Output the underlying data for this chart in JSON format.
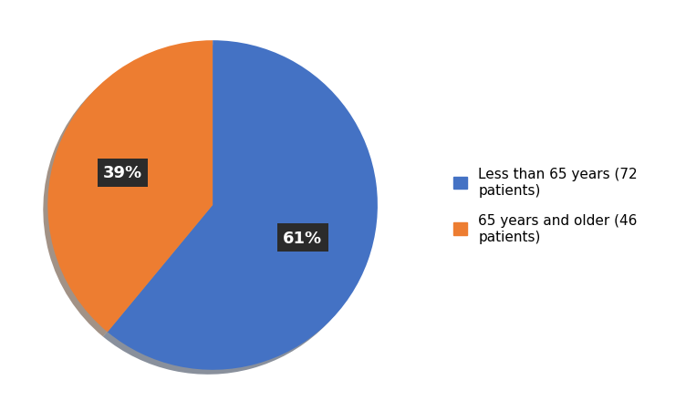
{
  "slices": [
    61,
    39
  ],
  "labels": [
    "Less than 65 years (72\npatients)",
    "65 years and older (46\npatients)"
  ],
  "colors": [
    "#4472C4",
    "#ED7D31"
  ],
  "pct_labels": [
    "61%",
    "39%"
  ],
  "pct_label_color": "white",
  "pct_box_color": "#2B2B2B",
  "startangle": 90,
  "background_color": "#ffffff",
  "legend_fontsize": 11,
  "pct_fontsize": 13,
  "shadow": true
}
